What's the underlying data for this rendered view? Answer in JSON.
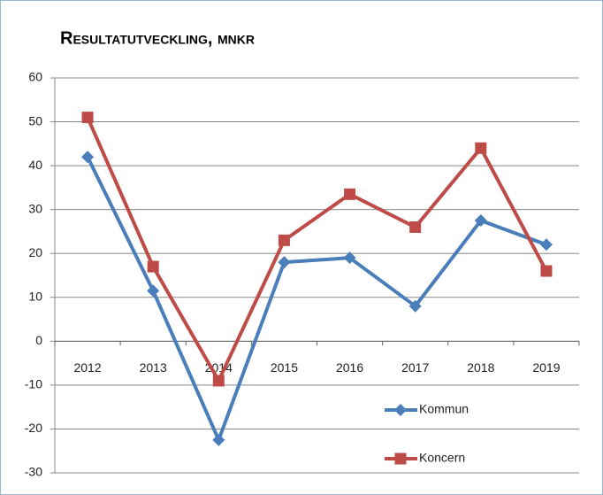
{
  "chart_data": {
    "type": "line",
    "title": "Resultatutveckling, mnkr",
    "categories": [
      "2012",
      "2013",
      "2014",
      "2015",
      "2016",
      "2017",
      "2018",
      "2019"
    ],
    "series": [
      {
        "name": "Kommun",
        "color": "#4a7ebb",
        "marker": "diamond",
        "values": [
          42,
          11.5,
          -22.5,
          18,
          19,
          8,
          27.5,
          22
        ]
      },
      {
        "name": "Koncern",
        "color": "#be4b48",
        "marker": "square",
        "values": [
          51,
          17,
          -9,
          23,
          33.5,
          26,
          44,
          16
        ]
      }
    ],
    "ylim": [
      -30,
      60
    ],
    "yticks": [
      -30,
      -20,
      -10,
      0,
      10,
      20,
      30,
      40,
      50,
      60
    ],
    "grid": true,
    "legend": "lower right"
  }
}
